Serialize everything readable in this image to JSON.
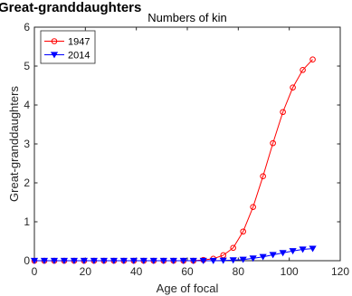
{
  "chart_data": {
    "type": "line",
    "suptitle": "Great-granddaughters",
    "title": "Numbers of kin",
    "xlabel": "Age of focal",
    "ylabel": "Great-granddaughters",
    "xlim": [
      0,
      120
    ],
    "ylim": [
      0,
      6
    ],
    "xticks": [
      0,
      20,
      40,
      60,
      80,
      100,
      120
    ],
    "yticks": [
      0,
      1,
      2,
      3,
      4,
      5,
      6
    ],
    "grid": false,
    "legend_position": "top-left",
    "series": [
      {
        "name": "1947",
        "color": "#ff0000",
        "marker": "circle",
        "x": [
          0,
          3.9,
          7.8,
          11.7,
          15.6,
          19.5,
          23.4,
          27.3,
          31.2,
          35.1,
          39,
          42.9,
          46.8,
          50.7,
          54.6,
          58.5,
          62.4,
          66.3,
          70.2,
          74.1,
          78,
          81.9,
          85.8,
          89.7,
          93.6,
          97.5,
          101.4,
          105.3,
          109.2
        ],
        "y": [
          0,
          0,
          0,
          0,
          0,
          0,
          0,
          0,
          0,
          0,
          0,
          0,
          0,
          0,
          0,
          0,
          0,
          0.02,
          0.05,
          0.14,
          0.33,
          0.75,
          1.38,
          2.17,
          3.02,
          3.82,
          4.45,
          4.9,
          5.17
        ]
      },
      {
        "name": "2014",
        "color": "#0000ff",
        "marker": "triangle-down",
        "x": [
          0,
          3.9,
          7.8,
          11.7,
          15.6,
          19.5,
          23.4,
          27.3,
          31.2,
          35.1,
          39,
          42.9,
          46.8,
          50.7,
          54.6,
          58.5,
          62.4,
          66.3,
          70.2,
          74.1,
          78,
          81.9,
          85.8,
          89.7,
          93.6,
          97.5,
          101.4,
          105.3,
          109.2
        ],
        "y": [
          0,
          0,
          0,
          0,
          0,
          0,
          0,
          0,
          0,
          0,
          0,
          0,
          0,
          0,
          0,
          0,
          0,
          0,
          0,
          0.005,
          0.015,
          0.03,
          0.06,
          0.1,
          0.15,
          0.2,
          0.25,
          0.29,
          0.31
        ]
      }
    ]
  }
}
